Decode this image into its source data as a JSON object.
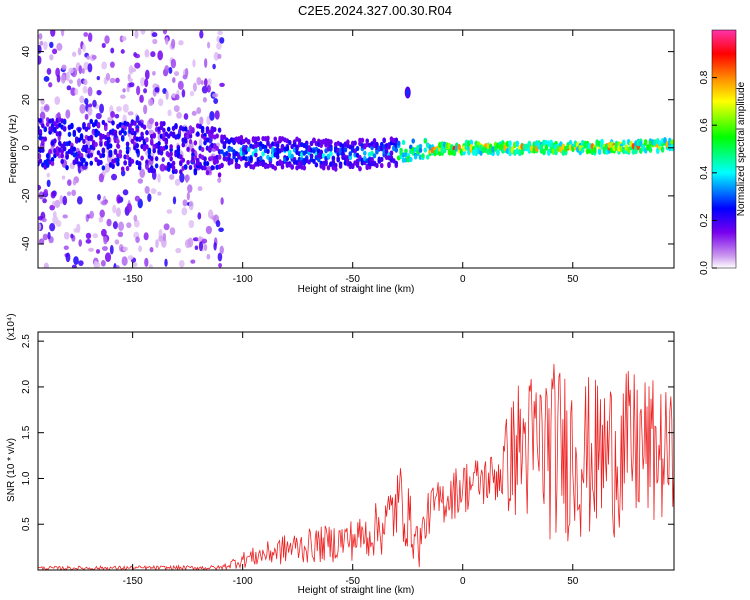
{
  "title": "C2E5.2024.327.00.30.R04",
  "chart_data": [
    {
      "type": "heatmap",
      "xlabel": "Height of straight line (km)",
      "ylabel": "Frequency (Hz)",
      "xlim": [
        -193,
        96
      ],
      "ylim": [
        -50,
        49
      ],
      "xticks": [
        -150,
        -100,
        -50,
        0,
        50
      ],
      "yticks": [
        -40,
        -20,
        0,
        20,
        40
      ],
      "grid": false,
      "colorbar": {
        "label": "Normalized spectral amplitude",
        "range": [
          0,
          1
        ],
        "ticks": [
          0.0,
          0.2,
          0.4,
          0.6,
          0.8
        ],
        "colors": [
          "#ffffff",
          "#cc99ee",
          "#7700ee",
          "#0000ff",
          "#00ffff",
          "#00ff00",
          "#ffff00",
          "#ff8800",
          "#ff0000",
          "#ff33aa"
        ]
      },
      "band": {
        "center_freq_hz": [
          {
            "x": -193,
            "f": 2
          },
          {
            "x": -150,
            "f": 1
          },
          {
            "x": -100,
            "f": -2
          },
          {
            "x": -50,
            "f": -3
          },
          {
            "x": -20,
            "f": -1
          },
          {
            "x": 0,
            "f": 0
          },
          {
            "x": 50,
            "f": 0
          },
          {
            "x": 96,
            "f": 1
          }
        ],
        "features": [
          {
            "x": -25,
            "f": 23,
            "label": "isolated burst"
          }
        ]
      }
    },
    {
      "type": "line",
      "xlabel": "Height of straight line (km)",
      "ylabel": "SNR (10 * v/v)",
      "y_multiplier": "(x10⁴)",
      "xlim": [
        -193,
        96
      ],
      "ylim": [
        0,
        2.6
      ],
      "xticks": [
        -150,
        -100,
        -50,
        0,
        50
      ],
      "yticks": [
        0.5,
        1.0,
        1.5,
        2.0,
        2.5
      ],
      "ytick_labels": [
        "0.5",
        "1.0",
        "1.5",
        "2.0",
        "2.5"
      ],
      "color": "#ee2222",
      "envelope": [
        {
          "x": -193,
          "min": 0.0,
          "max": 0.04
        },
        {
          "x": -110,
          "min": 0.0,
          "max": 0.05
        },
        {
          "x": -100,
          "min": 0.02,
          "max": 0.2
        },
        {
          "x": -80,
          "min": 0.05,
          "max": 0.4
        },
        {
          "x": -60,
          "min": 0.08,
          "max": 0.5
        },
        {
          "x": -45,
          "min": 0.1,
          "max": 0.6
        },
        {
          "x": -35,
          "min": 0.15,
          "max": 0.85
        },
        {
          "x": -28,
          "min": 0.3,
          "max": 1.2
        },
        {
          "x": -20,
          "min": 0.0,
          "max": 0.5
        },
        {
          "x": -15,
          "min": 0.4,
          "max": 0.9
        },
        {
          "x": 0,
          "min": 0.6,
          "max": 1.2
        },
        {
          "x": 15,
          "min": 0.7,
          "max": 1.3
        },
        {
          "x": 25,
          "min": 0.5,
          "max": 2.1
        },
        {
          "x": 40,
          "min": 0.3,
          "max": 2.3
        },
        {
          "x": 60,
          "min": 0.3,
          "max": 2.1
        },
        {
          "x": 80,
          "min": 0.4,
          "max": 2.2
        },
        {
          "x": 96,
          "min": 0.5,
          "max": 1.9
        }
      ]
    }
  ]
}
